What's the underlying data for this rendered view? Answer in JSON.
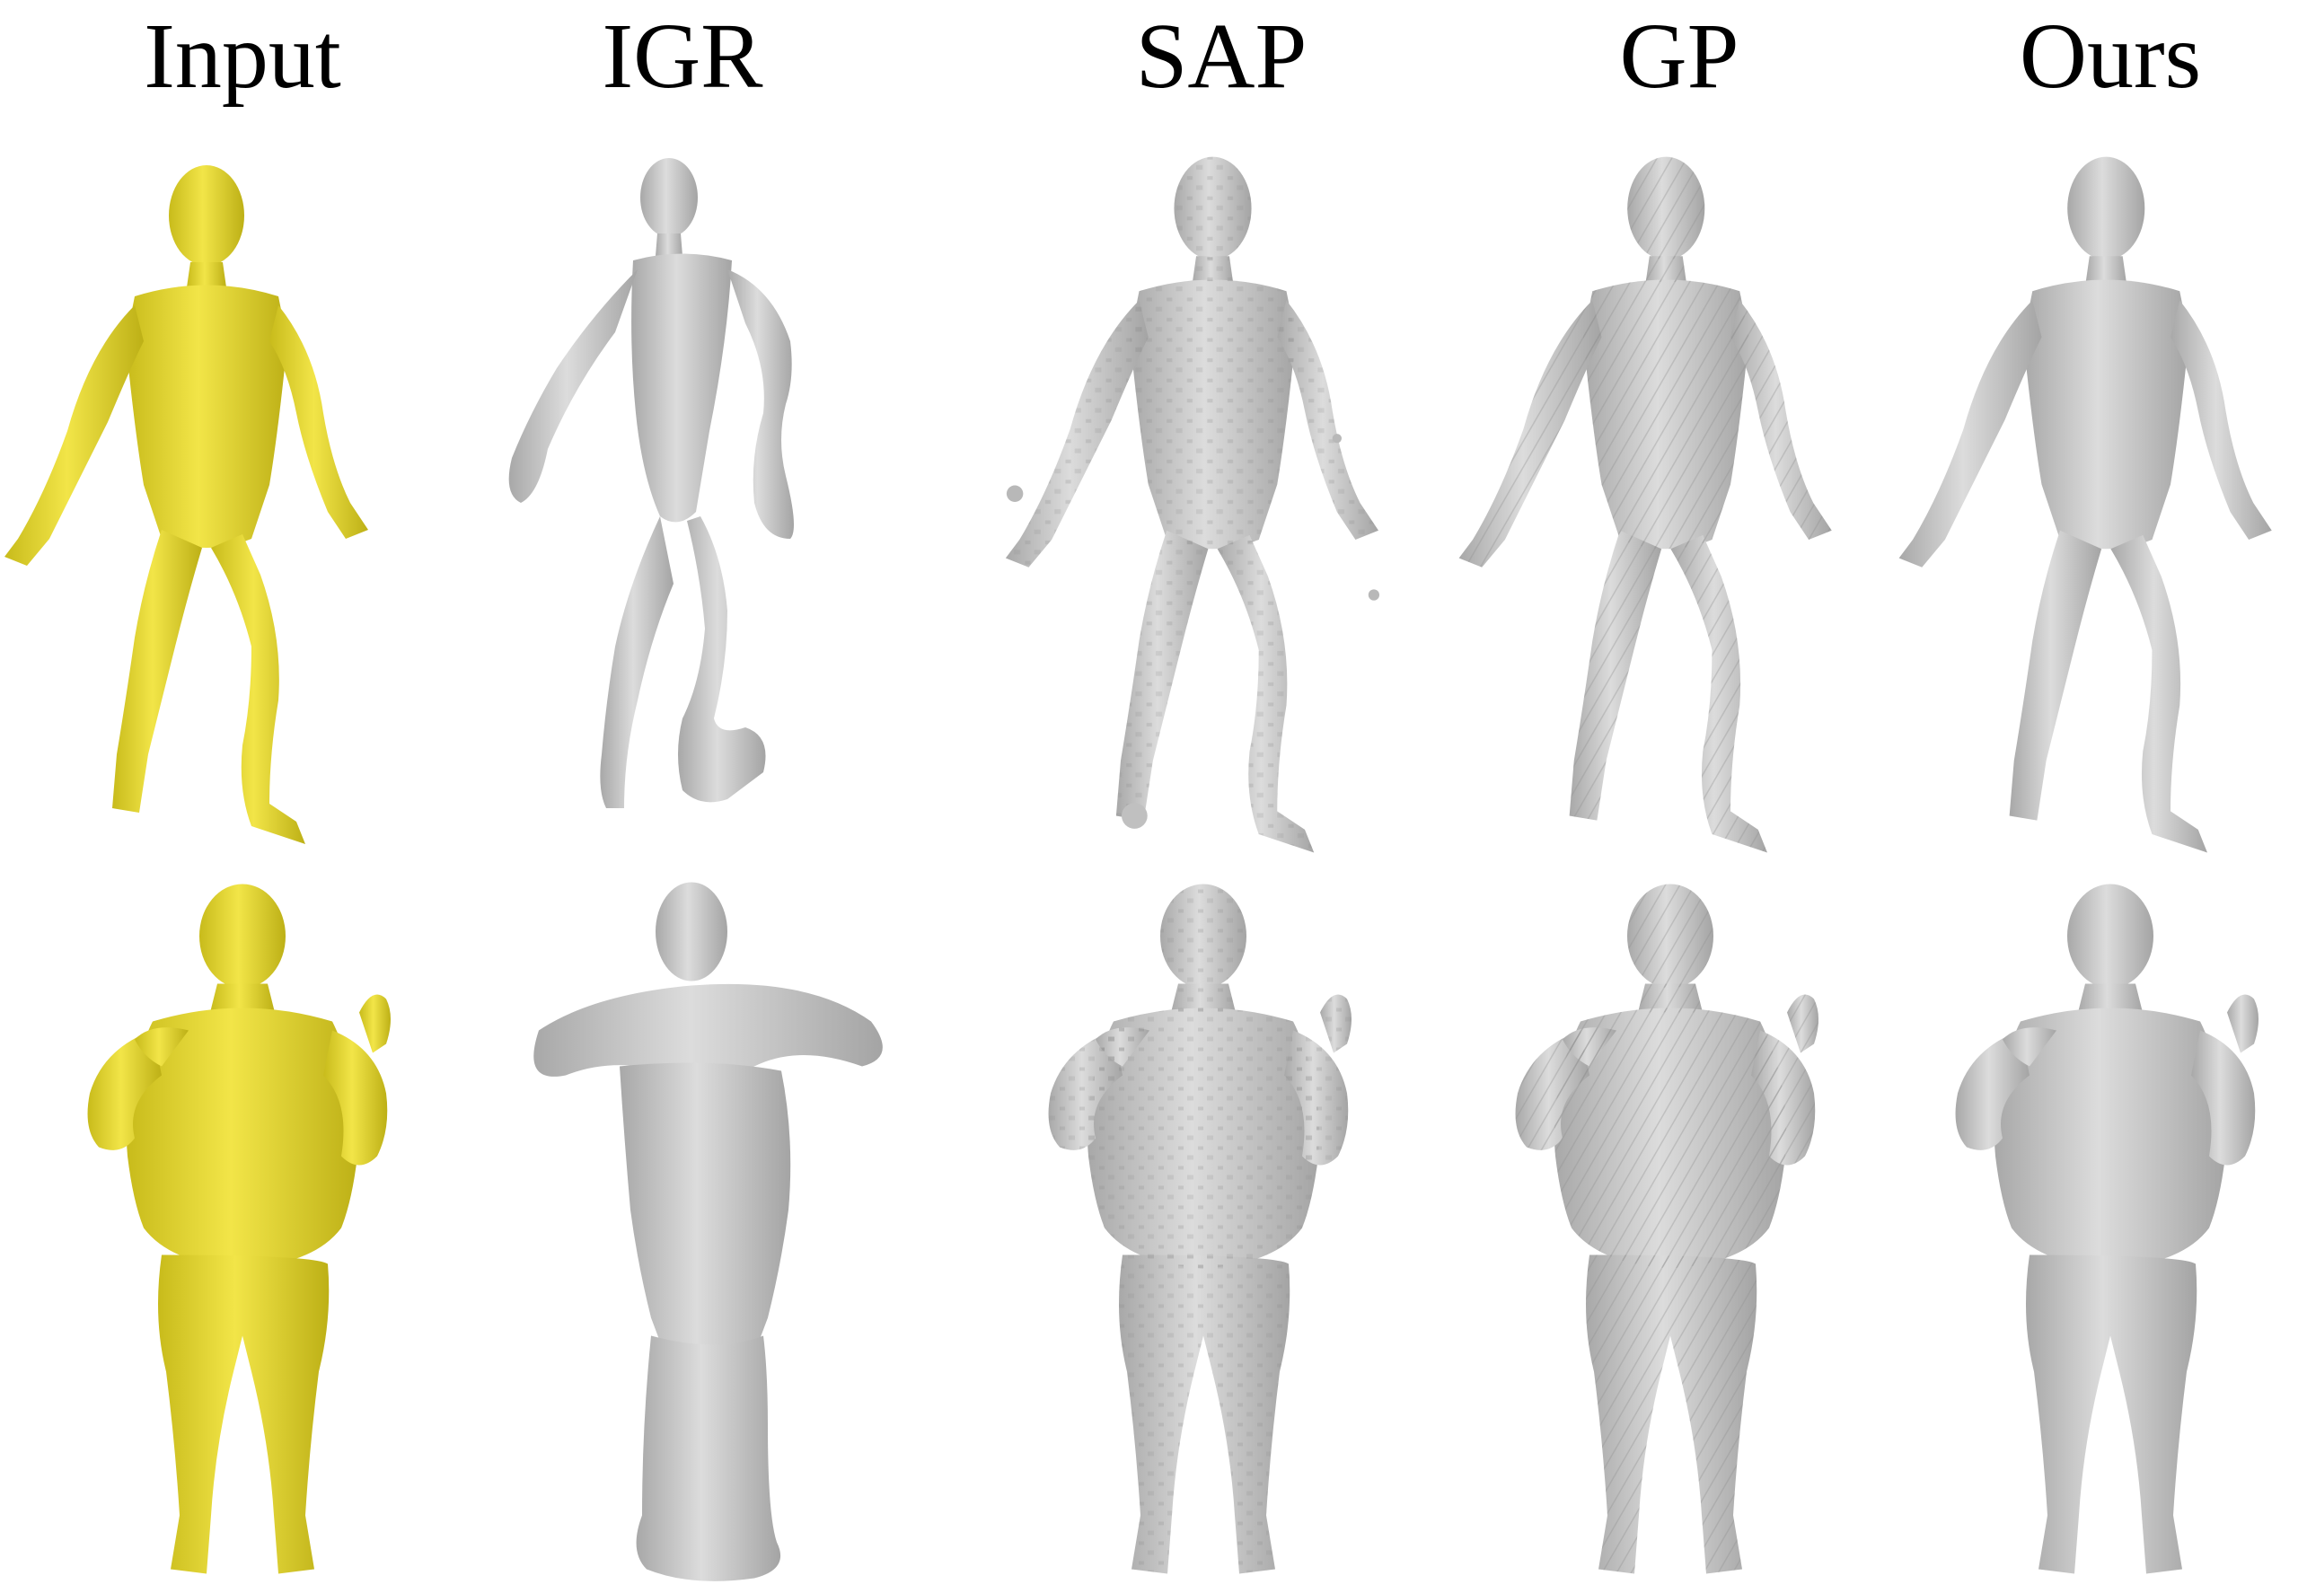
{
  "figure": {
    "column_labels": [
      "Input",
      "IGR",
      "SAP",
      "GP",
      "Ours"
    ],
    "colors": {
      "input_mesh": "#ece13a",
      "input_mesh_shade": "#b9ac14",
      "recon_mesh": "#cdcdcd",
      "recon_mesh_shade": "#9a9a9a",
      "background": "#ffffff",
      "label_text": "#000000"
    },
    "rows": [
      {
        "subject": "slim-male-stepping",
        "panels": [
          {
            "method": "Input",
            "style": "yellow-textured"
          },
          {
            "method": "IGR",
            "style": "smooth-blob"
          },
          {
            "method": "SAP",
            "style": "noisy-with-artifacts"
          },
          {
            "method": "GP",
            "style": "striped-surface"
          },
          {
            "method": "Ours",
            "style": "clean"
          }
        ]
      },
      {
        "subject": "heavy-male-standing",
        "panels": [
          {
            "method": "Input",
            "style": "yellow-textured"
          },
          {
            "method": "IGR",
            "style": "smooth-blob-folded"
          },
          {
            "method": "SAP",
            "style": "noisy"
          },
          {
            "method": "GP",
            "style": "striped-surface"
          },
          {
            "method": "Ours",
            "style": "clean"
          }
        ]
      }
    ]
  }
}
